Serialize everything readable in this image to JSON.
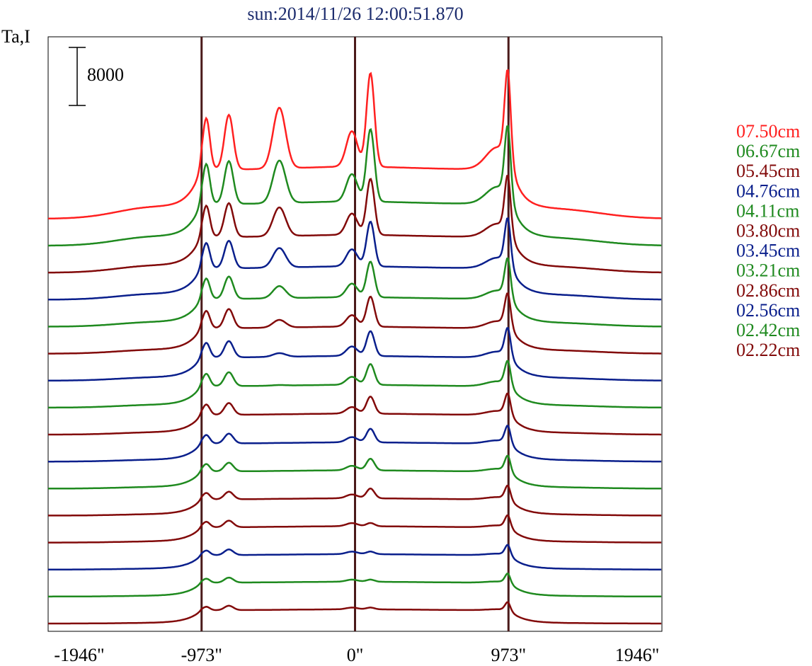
{
  "chart_data": {
    "type": "line",
    "title": "sun:2014/11/26 12:00:51.870",
    "ylabel": "Ta,I",
    "scale_bar_label": "8000",
    "x_tick_labels": [
      "-1946\"",
      "-973\"",
      "0\"",
      "973\"",
      "1946\""
    ],
    "x_ticks": [
      -1946,
      -973,
      0,
      973,
      1946
    ],
    "xlim": [
      -1946,
      1946
    ],
    "reference_lines_x": [
      -973,
      0,
      973
    ],
    "colors": {
      "red": "#ff2020",
      "green": "#1f8a1f",
      "darkred": "#820a0a",
      "blue": "#0a1f8c",
      "frame": "#000000",
      "reference_line": "#4a1a1a",
      "title": "#1a2a6c"
    },
    "series": [
      {
        "name": "07.50cm",
        "color_key": "red",
        "strength": 1.0,
        "rank": 0
      },
      {
        "name": "06.67cm",
        "color_key": "green",
        "strength": 0.85,
        "rank": 1
      },
      {
        "name": "05.45cm",
        "color_key": "darkred",
        "strength": 0.72,
        "rank": 2
      },
      {
        "name": "04.76cm",
        "color_key": "blue",
        "strength": 0.62,
        "rank": 3
      },
      {
        "name": "04.11cm",
        "color_key": "green",
        "strength": 0.53,
        "rank": 4
      },
      {
        "name": "03.80cm",
        "color_key": "darkred",
        "strength": 0.47,
        "rank": 5
      },
      {
        "name": "03.45cm",
        "color_key": "blue",
        "strength": 0.41,
        "rank": 6
      },
      {
        "name": "03.21cm",
        "color_key": "green",
        "strength": 0.36,
        "rank": 7
      },
      {
        "name": "02.86cm",
        "color_key": "darkred",
        "strength": 0.31,
        "rank": 8
      },
      {
        "name": "02.56cm",
        "color_key": "blue",
        "strength": 0.26,
        "rank": 9
      },
      {
        "name": "02.42cm",
        "color_key": "green",
        "strength": 0.23,
        "rank": 10
      },
      {
        "name": "02.22cm",
        "color_key": "darkred",
        "strength": 0.2,
        "rank": 11
      },
      {
        "name": "",
        "color_key": "darkred",
        "strength": 0.17,
        "rank": 12
      },
      {
        "name": "",
        "color_key": "blue",
        "strength": 0.14,
        "rank": 13
      },
      {
        "name": "",
        "color_key": "green",
        "strength": 0.12,
        "rank": 14
      },
      {
        "name": "",
        "color_key": "darkred",
        "strength": 0.1,
        "rank": 15
      }
    ],
    "legend_position": "right",
    "grid": false
  }
}
